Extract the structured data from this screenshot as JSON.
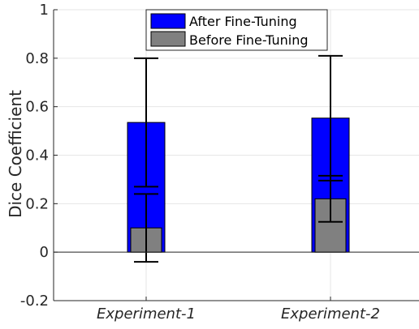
{
  "chart_data": {
    "type": "bar",
    "categories": [
      "Experiment-1",
      "Experiment-2"
    ],
    "ylabel": "Dice Coefficient",
    "xlabel": "",
    "ylim": [
      -0.2,
      1
    ],
    "yticks": [
      "-0.2",
      "0",
      "0.2",
      "0.4",
      "0.6",
      "0.8",
      "1"
    ],
    "grid": true,
    "legend_position": "top-center",
    "series": [
      {
        "name": "After Fine-Tuning",
        "color": "#0000ff",
        "values": [
          0.535,
          0.553
        ],
        "error_lower": [
          0.27,
          0.295
        ],
        "error_upper": [
          0.8,
          0.81
        ]
      },
      {
        "name": "Before Fine-Tuning",
        "color": "#808080",
        "values": [
          0.1,
          0.22
        ],
        "error_lower": [
          -0.04,
          0.125
        ],
        "error_upper": [
          0.24,
          0.315
        ]
      }
    ]
  }
}
